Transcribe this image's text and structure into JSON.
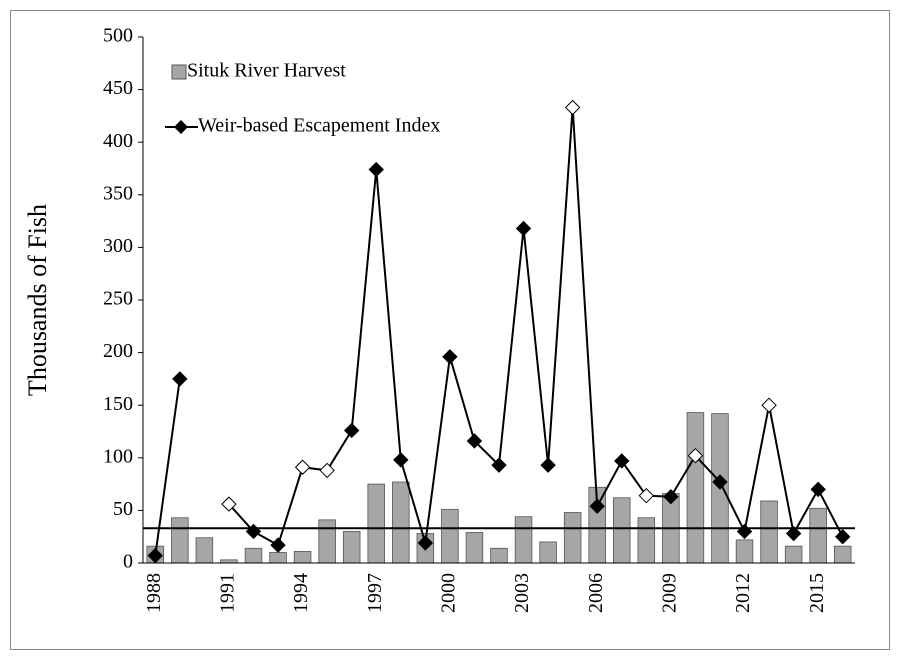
{
  "chart_data": {
    "type": "combo",
    "ylabel": "Thousands of Fish",
    "categories": [
      "1988",
      null,
      null,
      "1991",
      null,
      null,
      "1994",
      null,
      null,
      "1997",
      null,
      null,
      "2000",
      null,
      null,
      "2003",
      null,
      null,
      "2006",
      null,
      null,
      "2009",
      null,
      null,
      "2012",
      null,
      null,
      "2015",
      null
    ],
    "series": [
      {
        "name": "Situk River Harvest",
        "type": "bar",
        "color": "#a6a6a6",
        "values": [
          16,
          43,
          24,
          3,
          14,
          10,
          11,
          41,
          30,
          75,
          77,
          28,
          51,
          29,
          14,
          44,
          20,
          48,
          72,
          62,
          43,
          66,
          143,
          142,
          22,
          59,
          16,
          52,
          16
        ]
      },
      {
        "name": "Weir-based Escapement Index",
        "type": "line",
        "color": "#000000",
        "values": [
          7,
          175,
          null,
          56,
          30,
          17,
          91,
          88,
          126,
          374,
          98,
          19,
          196,
          116,
          93,
          318,
          93,
          433,
          54,
          97,
          64,
          63,
          102,
          77,
          30,
          150,
          28,
          70,
          25
        ],
        "hollow": [
          false,
          false,
          false,
          true,
          false,
          false,
          true,
          true,
          false,
          false,
          false,
          false,
          false,
          false,
          false,
          false,
          false,
          true,
          false,
          false,
          true,
          false,
          true,
          false,
          false,
          true,
          false,
          false,
          false
        ]
      }
    ],
    "hline": 33,
    "ylim": [
      0,
      500
    ],
    "yticks": [
      0,
      50,
      100,
      150,
      200,
      250,
      300,
      350,
      400,
      450,
      500
    ],
    "legend": "upper left"
  }
}
